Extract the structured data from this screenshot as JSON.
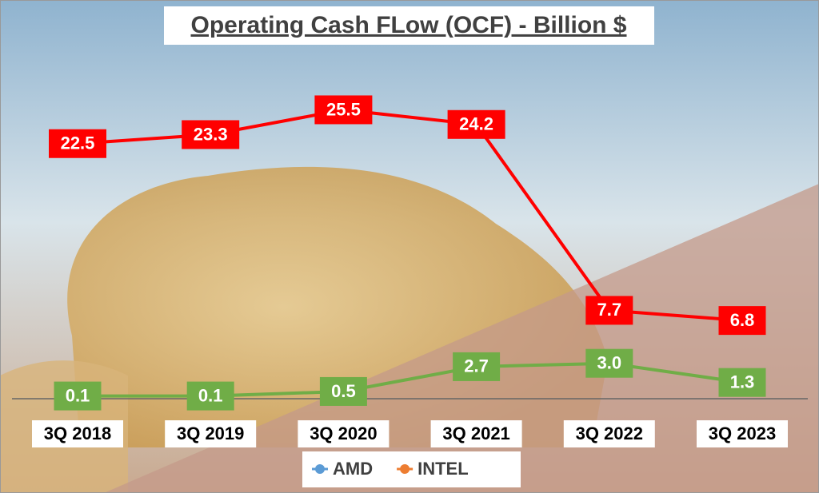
{
  "chart_data": {
    "type": "line",
    "title": "Operating Cash FLow (OCF) - Billion $",
    "categories": [
      "3Q 2018",
      "3Q 2019",
      "3Q 2020",
      "3Q 2021",
      "3Q 2022",
      "3Q 2023"
    ],
    "series": [
      {
        "name": "AMD",
        "color": "#70ad47",
        "legend_color": "#5b9bd5",
        "values": [
          0.1,
          0.1,
          0.5,
          2.7,
          3.0,
          1.3
        ],
        "value_labels": [
          "0.1",
          "0.1",
          "0.5",
          "2.7",
          "3.0",
          "1.3"
        ]
      },
      {
        "name": "INTEL",
        "color": "#ff0000",
        "legend_color": "#ed7d31",
        "values": [
          22.5,
          23.3,
          25.5,
          24.2,
          7.7,
          6.8
        ],
        "value_labels": [
          "22.5",
          "23.3",
          "25.5",
          "24.2",
          "7.7",
          "6.8"
        ]
      }
    ],
    "ylim": [
      0,
      30
    ],
    "legend": "bottom"
  }
}
